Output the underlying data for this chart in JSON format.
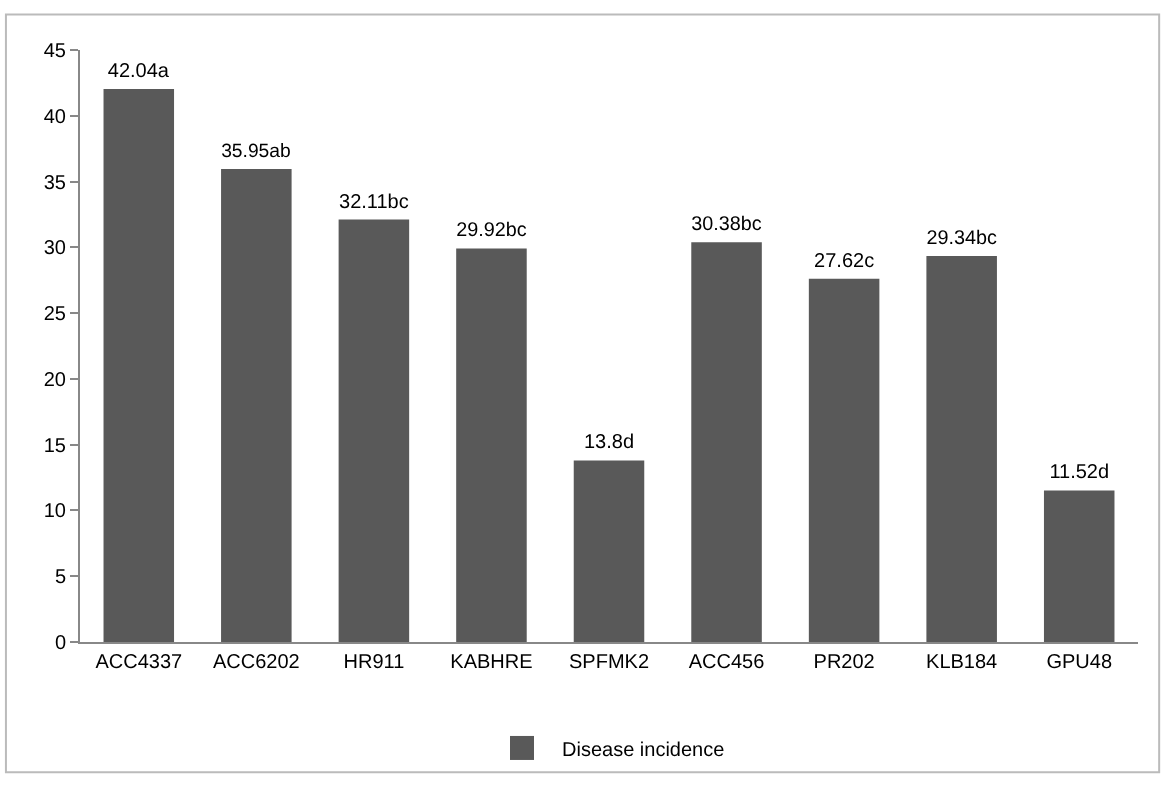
{
  "chart_data": {
    "type": "bar",
    "categories": [
      "ACC4337",
      "ACC6202",
      "HR911",
      "KABHRE",
      "SPFMK2",
      "ACC456",
      "PR202",
      "KLB184",
      "GPU48"
    ],
    "series": [
      {
        "name": "Disease incidence",
        "color": "#595959",
        "values": [
          42.04,
          35.95,
          32.11,
          29.92,
          13.8,
          30.38,
          27.62,
          29.34,
          11.52
        ],
        "value_labels": [
          "42.04a",
          "35.95ab",
          "32.11bc",
          "29.92bc",
          "13.8d",
          "30.38bc",
          "27.62c",
          "29.34bc",
          "11.52d"
        ]
      }
    ],
    "ylim": [
      0,
      45
    ],
    "yticks": [
      0,
      5,
      10,
      15,
      20,
      25,
      30,
      35,
      40,
      45
    ],
    "legend": "bottom"
  }
}
